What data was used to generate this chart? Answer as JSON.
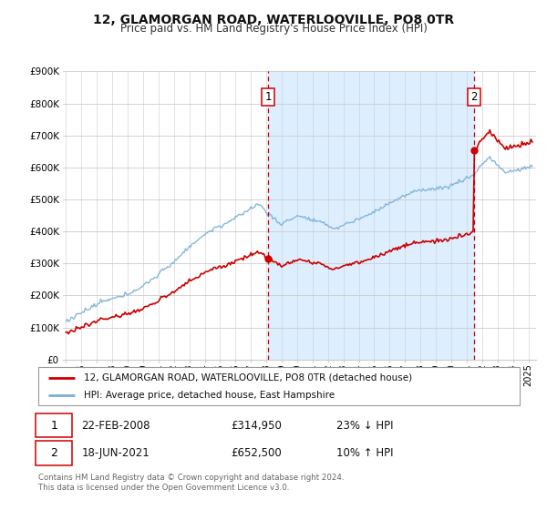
{
  "title": "12, GLAMORGAN ROAD, WATERLOOVILLE, PO8 0TR",
  "subtitle": "Price paid vs. HM Land Registry's House Price Index (HPI)",
  "ylim": [
    0,
    900000
  ],
  "yticks": [
    0,
    100000,
    200000,
    300000,
    400000,
    500000,
    600000,
    700000,
    800000,
    900000
  ],
  "ytick_labels": [
    "£0",
    "£100K",
    "£200K",
    "£300K",
    "£400K",
    "£500K",
    "£600K",
    "£700K",
    "£800K",
    "£900K"
  ],
  "xlim_start": 1994.8,
  "xlim_end": 2025.5,
  "sale1_date": 2008.13,
  "sale1_price": 314950,
  "sale2_date": 2021.46,
  "sale2_price": 652500,
  "sale1_text": "22-FEB-2008",
  "sale1_price_text": "£314,950",
  "sale1_hpi_text": "23% ↓ HPI",
  "sale2_text": "18-JUN-2021",
  "sale2_price_text": "£652,500",
  "sale2_hpi_text": "10% ↑ HPI",
  "shaded_region_color": "#ddeeff",
  "line_color_property": "#cc0000",
  "line_color_hpi": "#7ab0d4",
  "dashed_line_color": "#cc0000",
  "legend_label_property": "12, GLAMORGAN ROAD, WATERLOOVILLE, PO8 0TR (detached house)",
  "legend_label_hpi": "HPI: Average price, detached house, East Hampshire",
  "footnote": "Contains HM Land Registry data © Crown copyright and database right 2024.\nThis data is licensed under the Open Government Licence v3.0.",
  "background_color": "#ffffff",
  "grid_color": "#cccccc"
}
